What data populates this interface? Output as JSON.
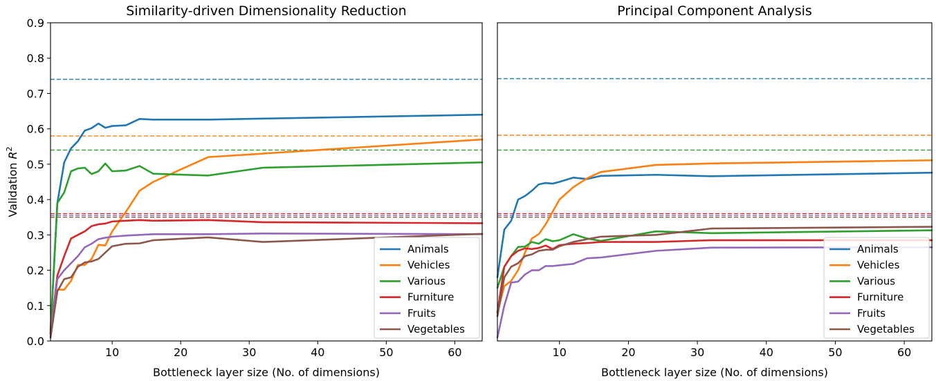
{
  "y_axis_label": "Validation R²",
  "colors": {
    "Animals": "#1f77b4",
    "Vehicles": "#ff7f0e",
    "Various": "#2ca02c",
    "Furniture": "#d62728",
    "Fruits": "#9467bd",
    "Vegetables": "#8c564b"
  },
  "chart_data": [
    {
      "type": "line",
      "title": "Similarity-driven Dimensionality Reduction",
      "xlabel": "Bottleneck layer size (No. of dimensions)",
      "ylabel": "Validation R²",
      "xlim": [
        1,
        64
      ],
      "ylim": [
        0,
        0.9
      ],
      "xticks": [
        10,
        20,
        30,
        40,
        50,
        60
      ],
      "yticks": [
        0.0,
        0.1,
        0.2,
        0.3,
        0.4,
        0.5,
        0.6,
        0.7,
        0.8,
        0.9
      ],
      "legend": "lower-right",
      "grid": false,
      "x": [
        1,
        2,
        3,
        4,
        5,
        6,
        7,
        8,
        9,
        10,
        12,
        14,
        16,
        24,
        32,
        64
      ],
      "series": [
        {
          "name": "Animals",
          "values": [
            0.02,
            0.39,
            0.505,
            0.545,
            0.565,
            0.595,
            0.602,
            0.615,
            0.603,
            0.608,
            0.61,
            0.628,
            0.626,
            0.626,
            0.629,
            0.64
          ]
        },
        {
          "name": "Vehicles",
          "values": [
            0.01,
            0.145,
            0.145,
            0.17,
            0.215,
            0.215,
            0.232,
            0.272,
            0.27,
            0.31,
            0.365,
            0.425,
            0.45,
            0.52,
            0.53,
            0.57
          ]
        },
        {
          "name": "Various",
          "values": [
            0.03,
            0.39,
            0.42,
            0.48,
            0.488,
            0.49,
            0.472,
            0.48,
            0.502,
            0.48,
            0.482,
            0.495,
            0.473,
            0.468,
            0.49,
            0.505
          ]
        },
        {
          "name": "Furniture",
          "values": [
            0.02,
            0.185,
            0.24,
            0.29,
            0.3,
            0.31,
            0.325,
            0.33,
            0.332,
            0.338,
            0.34,
            0.342,
            0.34,
            0.342,
            0.336,
            0.333
          ]
        },
        {
          "name": "Fruits",
          "values": [
            0.02,
            0.175,
            0.2,
            0.22,
            0.24,
            0.265,
            0.275,
            0.288,
            0.292,
            0.295,
            0.298,
            0.3,
            0.302,
            0.302,
            0.304,
            0.302
          ]
        },
        {
          "name": "Vegetables",
          "values": [
            0.01,
            0.14,
            0.175,
            0.18,
            0.21,
            0.222,
            0.225,
            0.232,
            0.25,
            0.268,
            0.275,
            0.276,
            0.285,
            0.293,
            0.28,
            0.303
          ]
        }
      ],
      "baselines": [
        {
          "name": "Animals",
          "value": 0.74
        },
        {
          "name": "Vehicles",
          "value": 0.58
        },
        {
          "name": "Various",
          "value": 0.54
        },
        {
          "name": "Furniture",
          "value": 0.36
        },
        {
          "name": "Fruits",
          "value": 0.355
        },
        {
          "name": "Vegetables",
          "value": 0.35
        }
      ]
    },
    {
      "type": "line",
      "title": "Principal Component Analysis",
      "xlabel": "Bottleneck layer size (No. of dimensions)",
      "xlim": [
        1,
        64
      ],
      "ylim": [
        0,
        0.9
      ],
      "xticks": [
        10,
        20,
        30,
        40,
        50,
        60
      ],
      "legend": "lower-right",
      "grid": false,
      "x": [
        1,
        2,
        3,
        4,
        5,
        6,
        7,
        8,
        9,
        10,
        12,
        14,
        16,
        24,
        32,
        64
      ],
      "series": [
        {
          "name": "Animals",
          "values": [
            0.18,
            0.315,
            0.34,
            0.4,
            0.41,
            0.425,
            0.443,
            0.447,
            0.445,
            0.45,
            0.462,
            0.458,
            0.467,
            0.47,
            0.466,
            0.476
          ]
        },
        {
          "name": "Vehicles",
          "values": [
            0.08,
            0.155,
            0.17,
            0.2,
            0.25,
            0.29,
            0.302,
            0.33,
            0.365,
            0.4,
            0.435,
            0.46,
            0.478,
            0.498,
            0.502,
            0.511
          ]
        },
        {
          "name": "Various",
          "values": [
            0.15,
            0.21,
            0.24,
            0.266,
            0.267,
            0.28,
            0.275,
            0.288,
            0.282,
            0.285,
            0.302,
            0.29,
            0.283,
            0.31,
            0.305,
            0.313
          ]
        },
        {
          "name": "Furniture",
          "values": [
            0.08,
            0.21,
            0.24,
            0.255,
            0.262,
            0.26,
            0.263,
            0.27,
            0.26,
            0.271,
            0.275,
            0.277,
            0.28,
            0.28,
            0.285,
            0.285
          ]
        },
        {
          "name": "Fruits",
          "values": [
            0.01,
            0.1,
            0.165,
            0.168,
            0.188,
            0.2,
            0.2,
            0.212,
            0.212,
            0.214,
            0.218,
            0.234,
            0.236,
            0.255,
            0.264,
            0.265
          ]
        },
        {
          "name": "Vegetables",
          "values": [
            0.07,
            0.18,
            0.21,
            0.22,
            0.24,
            0.245,
            0.255,
            0.258,
            0.258,
            0.268,
            0.28,
            0.288,
            0.295,
            0.3,
            0.318,
            0.323
          ]
        }
      ],
      "baselines": [
        {
          "name": "Animals",
          "value": 0.742
        },
        {
          "name": "Vehicles",
          "value": 0.582
        },
        {
          "name": "Various",
          "value": 0.54
        },
        {
          "name": "Furniture",
          "value": 0.36
        },
        {
          "name": "Fruits",
          "value": 0.355
        },
        {
          "name": "Vegetables",
          "value": 0.35
        }
      ]
    }
  ]
}
